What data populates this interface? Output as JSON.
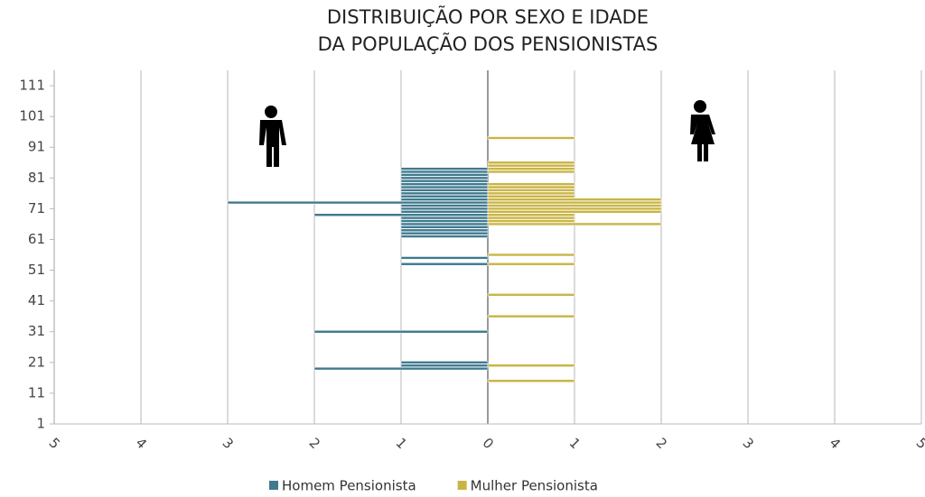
{
  "chart_data": {
    "type": "bar",
    "orientation": "horizontal",
    "title": [
      "DISTRIBUIÇÃO POR SEXO E IDADE",
      "DA POPULAÇÃO DOS PENSIONISTAS"
    ],
    "y": [
      15,
      19,
      20,
      21,
      31,
      36,
      43,
      53,
      55,
      56,
      62,
      63,
      64,
      65,
      66,
      67,
      68,
      69,
      70,
      71,
      72,
      73,
      74,
      75,
      76,
      77,
      78,
      79,
      80,
      81,
      82,
      83,
      84,
      85,
      86,
      94
    ],
    "series": [
      {
        "name": "Homem Pensionista",
        "color": "#3f7a8e",
        "values": [
          0,
          -2,
          -1,
          -1,
          -2,
          0,
          0,
          -1,
          -1,
          0,
          -1,
          -1,
          -1,
          -1,
          -1,
          -1,
          -1,
          -2,
          -1,
          -1,
          -1,
          -3,
          -1,
          -1,
          -1,
          -1,
          -1,
          -1,
          -1,
          -1,
          -1,
          -1,
          -1,
          0,
          0,
          0
        ]
      },
      {
        "name": "Mulher Pensionista",
        "color": "#c9b444",
        "values": [
          1,
          0,
          1,
          0,
          0,
          1,
          1,
          1,
          0,
          1,
          0,
          0,
          0,
          0,
          2,
          1,
          1,
          1,
          2,
          2,
          2,
          2,
          2,
          1,
          1,
          1,
          1,
          1,
          0,
          0,
          0,
          1,
          1,
          1,
          1,
          1
        ]
      }
    ],
    "xlim": [
      -5,
      5
    ],
    "xticks": [
      {
        "value": -5,
        "label": "5"
      },
      {
        "value": -4,
        "label": "4"
      },
      {
        "value": -3,
        "label": "3"
      },
      {
        "value": -2,
        "label": "2"
      },
      {
        "value": -1,
        "label": "1"
      },
      0,
      1,
      2,
      3,
      4,
      5
    ],
    "ylim": [
      1,
      116
    ],
    "yticks": [
      1,
      11,
      21,
      31,
      41,
      51,
      61,
      71,
      81,
      91,
      101,
      111
    ],
    "grid": true,
    "legend": "bottom"
  }
}
